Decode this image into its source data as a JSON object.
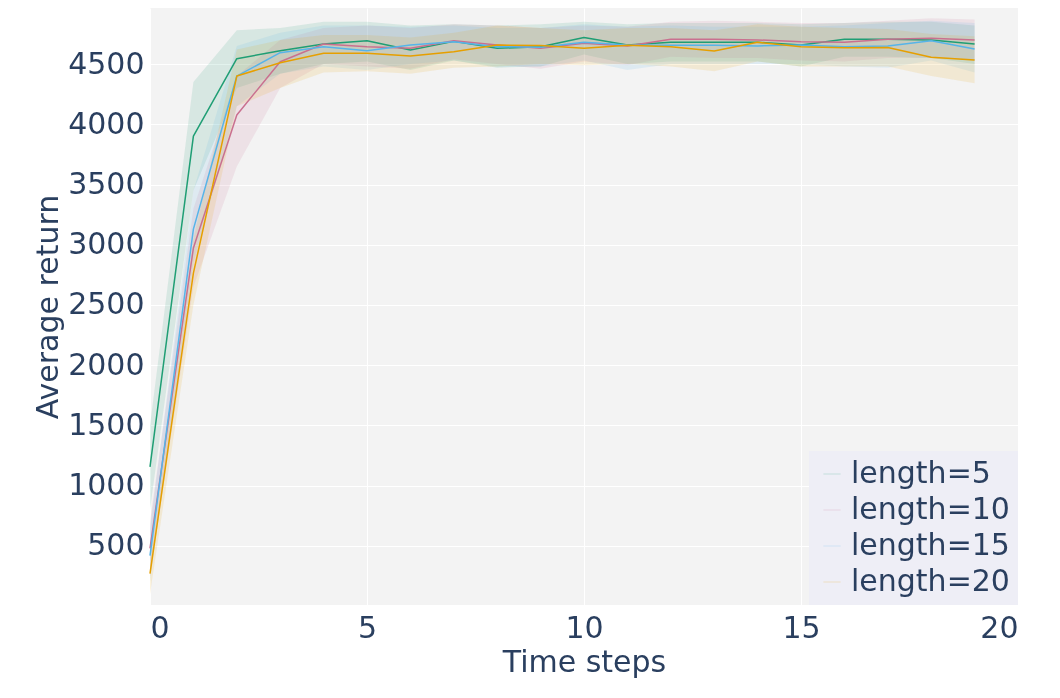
{
  "chart_data": {
    "type": "line",
    "xlabel": "Time steps",
    "ylabel": "Average return",
    "x": [
      0,
      1,
      2,
      3,
      4,
      5,
      6,
      7,
      8,
      9,
      10,
      11,
      12,
      13,
      14,
      15,
      16,
      17,
      18,
      19
    ],
    "xlim": [
      0,
      20
    ],
    "xticks": [
      0,
      5,
      10,
      15,
      20
    ],
    "ylim": [
      10,
      4965
    ],
    "yticks": [
      500,
      1000,
      1500,
      2000,
      2500,
      3000,
      3500,
      4000,
      4500
    ],
    "grid": true,
    "legend": "bottom right",
    "line_style": "solid",
    "marker": "none",
    "series": [
      {
        "name": "length=5",
        "color": "#1f9e74",
        "values": [
          1156,
          3902,
          4544,
          4610,
          4666,
          4693,
          4616,
          4688,
          4630,
          4644,
          4721,
          4658,
          4680,
          4680,
          4680,
          4658,
          4705,
          4705,
          4700,
          4666
        ],
        "upper": [
          1500,
          4350,
          4780,
          4800,
          4850,
          4850,
          4820,
          4830,
          4820,
          4830,
          4850,
          4830,
          4840,
          4840,
          4840,
          4830,
          4840,
          4850,
          4850,
          4820
        ],
        "lower": [
          800,
          3450,
          4300,
          4420,
          4500,
          4520,
          4450,
          4530,
          4470,
          4480,
          4580,
          4500,
          4520,
          4520,
          4520,
          4480,
          4560,
          4560,
          4550,
          4500
        ]
      },
      {
        "name": "length=10",
        "color": "#c9708f",
        "values": [
          480,
          2973,
          4077,
          4519,
          4666,
          4644,
          4630,
          4694,
          4658,
          4630,
          4672,
          4650,
          4705,
          4705,
          4700,
          4685,
          4680,
          4705,
          4713,
          4700
        ],
        "upper": [
          700,
          3300,
          4400,
          4700,
          4800,
          4820,
          4800,
          4830,
          4820,
          4800,
          4820,
          4810,
          4850,
          4860,
          4850,
          4840,
          4840,
          4860,
          4880,
          4870
        ],
        "lower": [
          250,
          2650,
          3650,
          4300,
          4500,
          4480,
          4460,
          4540,
          4500,
          4460,
          4520,
          4490,
          4560,
          4550,
          4550,
          4530,
          4520,
          4550,
          4550,
          4530
        ]
      },
      {
        "name": "length=15",
        "color": "#56b4e9",
        "values": [
          420,
          3130,
          4400,
          4594,
          4644,
          4610,
          4658,
          4685,
          4644,
          4640,
          4680,
          4658,
          4655,
          4655,
          4650,
          4658,
          4644,
          4650,
          4694,
          4624
        ],
        "upper": [
          650,
          3450,
          4650,
          4760,
          4820,
          4820,
          4810,
          4820,
          4800,
          4800,
          4830,
          4810,
          4820,
          4810,
          4810,
          4810,
          4820,
          4840,
          4860,
          4840
        ],
        "lower": [
          200,
          2850,
          4150,
          4420,
          4480,
          4450,
          4500,
          4530,
          4480,
          4480,
          4530,
          4450,
          4500,
          4500,
          4500,
          4500,
          4480,
          4470,
          4530,
          4430
        ]
      },
      {
        "name": "length=20",
        "color": "#e69f00",
        "values": [
          270,
          2765,
          4400,
          4511,
          4589,
          4589,
          4566,
          4602,
          4658,
          4653,
          4630,
          4655,
          4644,
          4608,
          4680,
          4644,
          4636,
          4638,
          4556,
          4533
        ],
        "upper": [
          450,
          3050,
          4620,
          4700,
          4740,
          4740,
          4720,
          4760,
          4820,
          4800,
          4780,
          4800,
          4800,
          4780,
          4830,
          4810,
          4800,
          4790,
          4750,
          4730
        ],
        "lower": [
          100,
          2500,
          4150,
          4300,
          4430,
          4440,
          4420,
          4470,
          4480,
          4500,
          4490,
          4500,
          4480,
          4440,
          4520,
          4480,
          4480,
          4480,
          4400,
          4340
        ]
      }
    ]
  }
}
